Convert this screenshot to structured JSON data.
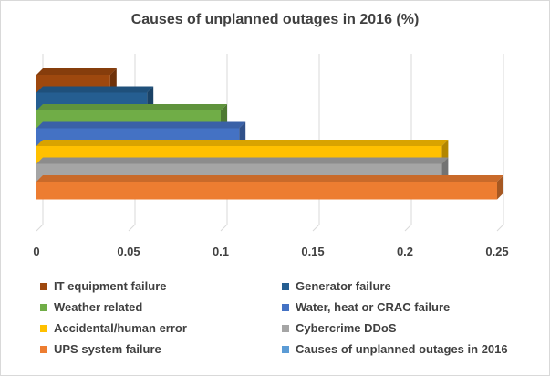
{
  "chart_data": {
    "type": "bar",
    "orientation": "horizontal",
    "style": "3d",
    "title": "Causes of unplanned outages in 2016 (%)",
    "xlabel": "",
    "ylabel": "",
    "xlim": [
      0,
      0.25
    ],
    "xticks": [
      "0",
      "0.05",
      "0.1",
      "0.15",
      "0.2",
      "0.25"
    ],
    "tick_values": [
      0,
      0.05,
      0.1,
      0.15,
      0.2,
      0.25
    ],
    "grid": true,
    "legend_position": "bottom",
    "series": [
      {
        "name": "IT equipment failure",
        "value": 0.04,
        "color": "#9e480e"
      },
      {
        "name": "Generator failure",
        "value": 0.06,
        "color": "#255e91"
      },
      {
        "name": "Weather related",
        "value": 0.1,
        "color": "#70ad47"
      },
      {
        "name": "Water, heat or CRAC failure",
        "value": 0.11,
        "color": "#4472c4"
      },
      {
        "name": "Accidental/human error",
        "value": 0.22,
        "color": "#ffc000"
      },
      {
        "name": "Cybercrime DDoS",
        "value": 0.22,
        "color": "#a5a5a5"
      },
      {
        "name": "UPS system failure",
        "value": 0.25,
        "color": "#ed7d31"
      }
    ],
    "legend": [
      {
        "label": "IT equipment failure",
        "color": "#9e480e"
      },
      {
        "label": "Generator failure",
        "color": "#255e91"
      },
      {
        "label": "Weather related",
        "color": "#70ad47"
      },
      {
        "label": "Water, heat or CRAC failure",
        "color": "#4472c4"
      },
      {
        "label": "Accidental/human error",
        "color": "#ffc000"
      },
      {
        "label": "Cybercrime DDoS",
        "color": "#a5a5a5"
      },
      {
        "label": "UPS system failure",
        "color": "#ed7d31"
      },
      {
        "label": "Causes of unplanned outages in 2016",
        "color": "#5b9bd5"
      }
    ]
  }
}
